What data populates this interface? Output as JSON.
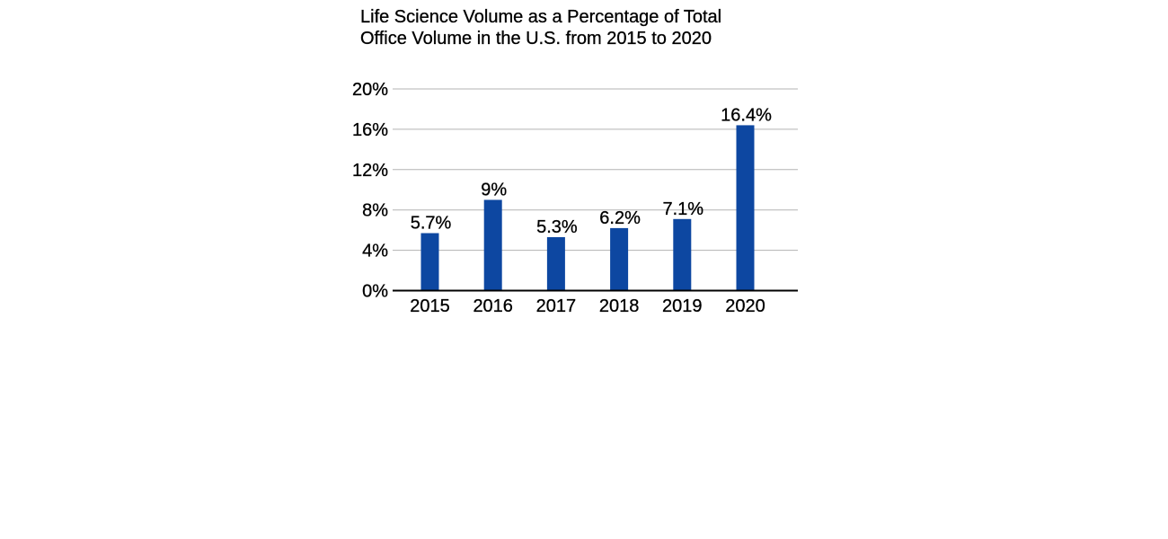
{
  "chart_data": {
    "type": "bar",
    "title_lines": [
      "Life Science Volume as a Percentage of Total",
      "Office Volume in the U.S. from 2015 to 2020"
    ],
    "categories": [
      "2015",
      "2016",
      "2017",
      "2018",
      "2019",
      "2020"
    ],
    "values": [
      5.7,
      9,
      5.3,
      6.2,
      7.1,
      16.4
    ],
    "data_labels": [
      "5.7%",
      "9%",
      "5.3%",
      "6.2%",
      "7.1%",
      "16.4%"
    ],
    "y_ticks": [
      0,
      4,
      8,
      12,
      16,
      20
    ],
    "y_tick_labels": [
      "0%",
      "4%",
      "8%",
      "12%",
      "16%",
      "20%"
    ],
    "ylim": [
      0,
      20
    ],
    "grid": true,
    "legend": "none",
    "bar_color": "#0d47a1",
    "grid_color": "#b3b3b3",
    "axis_color": "#000000"
  }
}
